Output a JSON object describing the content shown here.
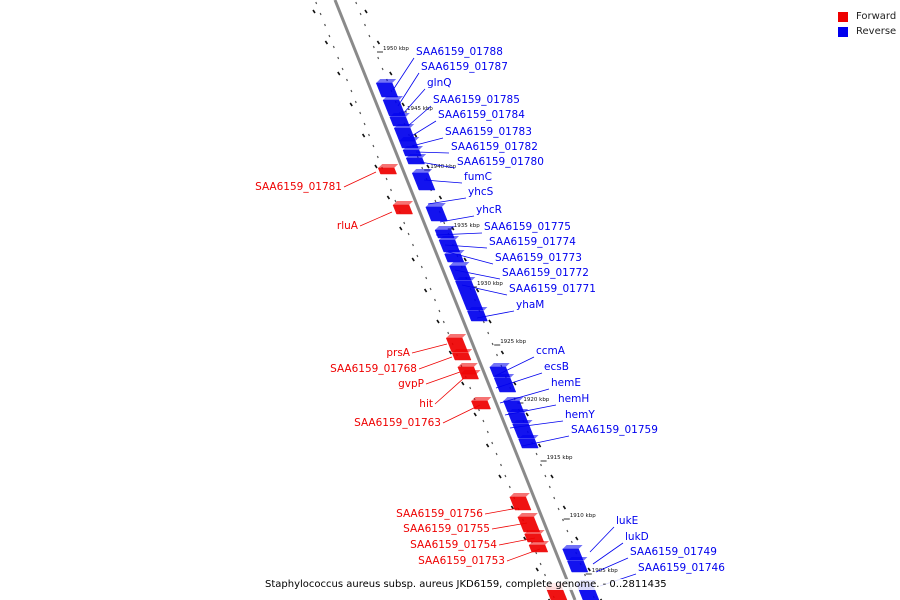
{
  "legend": {
    "forward": {
      "label": "Forward",
      "color": "#ee0000"
    },
    "reverse": {
      "label": "Reverse",
      "color": "#0000ee"
    }
  },
  "caption": "Staphylococcus aureus subsp. aureus JKD6159, complete genome. - 0..2811435",
  "ticks": [
    "1950 kbp",
    "1945 kbp",
    "1940 kbp",
    "1935 kbp",
    "1930 kbp",
    "1925 kbp",
    "1920 kbp",
    "1915 kbp",
    "1910 kbp",
    "1905 kbp"
  ],
  "genes": {
    "reverse": [
      "SAA6159_01788",
      "SAA6159_01787",
      "glnQ",
      "SAA6159_01785",
      "SAA6159_01784",
      "SAA6159_01783",
      "SAA6159_01782",
      "SAA6159_01780",
      "fumC",
      "yhcS",
      "yhcR",
      "SAA6159_01775",
      "SAA6159_01774",
      "SAA6159_01773",
      "SAA6159_01772",
      "SAA6159_01771",
      "yhaM",
      "ccmA",
      "ecsB",
      "hemE",
      "hemH",
      "hemY",
      "SAA6159_01759",
      "lukE",
      "lukD",
      "SAA6159_01749",
      "SAA6159_01746"
    ],
    "forward": [
      "SAA6159_01781",
      "rluA",
      "prsA",
      "SAA6159_01768",
      "gvpP",
      "hit",
      "SAA6159_01763",
      "SAA6159_01756",
      "SAA6159_01755",
      "SAA6159_01754",
      "SAA6159_01753"
    ]
  }
}
